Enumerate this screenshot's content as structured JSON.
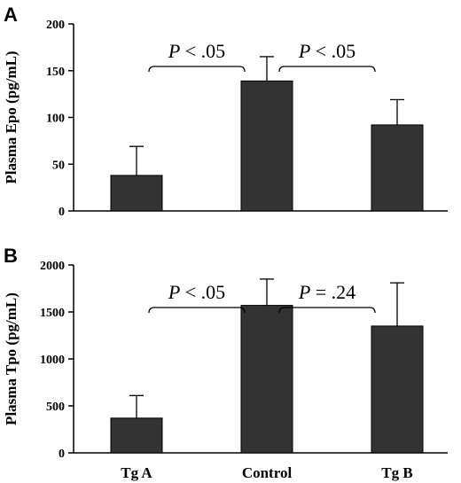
{
  "chart_data": [
    {
      "type": "bar",
      "panel": "A",
      "ylabel": "Plasma Epo (pg/mL)",
      "categories": [
        "Tg A",
        "Control",
        "Tg B"
      ],
      "values": [
        38,
        139,
        92
      ],
      "errors": [
        31,
        26,
        27
      ],
      "ylim": [
        0,
        200
      ],
      "yticks": [
        0,
        50,
        100,
        150,
        200
      ],
      "show_xlabels": false,
      "bar_color": "#333333",
      "comparisons": [
        {
          "from": 0,
          "to": 1,
          "p": "P",
          "text": " < .05"
        },
        {
          "from": 1,
          "to": 2,
          "p": "P",
          "text": " < .05"
        }
      ]
    },
    {
      "type": "bar",
      "panel": "B",
      "ylabel": "Plasma Tpo (pg/mL)",
      "categories": [
        "Tg A",
        "Control",
        "Tg B"
      ],
      "values": [
        370,
        1570,
        1350
      ],
      "errors": [
        240,
        280,
        460
      ],
      "ylim": [
        0,
        2000
      ],
      "yticks": [
        0,
        500,
        1000,
        1500,
        2000
      ],
      "show_xlabels": true,
      "bar_color": "#333333",
      "comparisons": [
        {
          "from": 0,
          "to": 1,
          "p": "P",
          "text": " < .05"
        },
        {
          "from": 1,
          "to": 2,
          "p": "P",
          "text": " = .24"
        }
      ]
    }
  ]
}
